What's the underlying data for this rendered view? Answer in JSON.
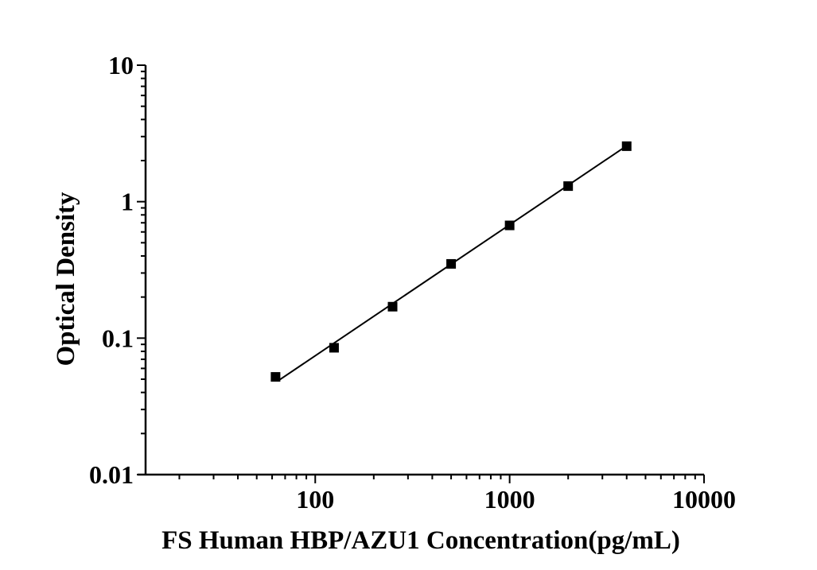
{
  "chart_data": {
    "type": "scatter",
    "title": "",
    "xlabel": "FS Human HBP/AZU1 Concentration(pg/mL)",
    "ylabel": "Optical Density",
    "x_scale": "log",
    "y_scale": "log",
    "xlim": [
      12.2,
      10000
    ],
    "ylim": [
      0.01,
      10
    ],
    "grid": false,
    "legend": false,
    "background_color": "#ffffff",
    "axis_color": "#000000",
    "line_color": "#000000",
    "marker": {
      "shape": "square",
      "color": "#000000",
      "size": 12
    },
    "x": [
      62.5,
      125,
      250,
      500,
      1000,
      2000,
      4000
    ],
    "y": [
      0.052,
      0.085,
      0.17,
      0.35,
      0.67,
      1.3,
      2.55
    ],
    "trend_line": {
      "x1": 64,
      "y1": 0.0484,
      "x2": 3990,
      "y2": 2.56
    },
    "x_ticks": {
      "major": [
        {
          "v": 100,
          "label": "100"
        },
        {
          "v": 1000,
          "label": "1000"
        },
        {
          "v": 10000,
          "label": "10000"
        }
      ],
      "minor": [
        20,
        30,
        40,
        50,
        60,
        70,
        80,
        90,
        200,
        300,
        400,
        500,
        600,
        700,
        800,
        900,
        2000,
        3000,
        4000,
        5000,
        6000,
        7000,
        8000,
        9000
      ]
    },
    "y_ticks": {
      "major": [
        {
          "v": 10,
          "label": "10"
        },
        {
          "v": 1,
          "label": "1"
        },
        {
          "v": 0.1,
          "label": "0.1"
        },
        {
          "v": 0.01,
          "label": "0.01"
        }
      ],
      "minor": [
        0.02,
        0.03,
        0.04,
        0.05,
        0.06,
        0.07,
        0.08,
        0.09,
        0.2,
        0.3,
        0.4,
        0.5,
        0.6,
        0.7,
        0.8,
        0.9,
        2,
        3,
        4,
        5,
        6,
        7,
        8,
        9
      ]
    }
  }
}
